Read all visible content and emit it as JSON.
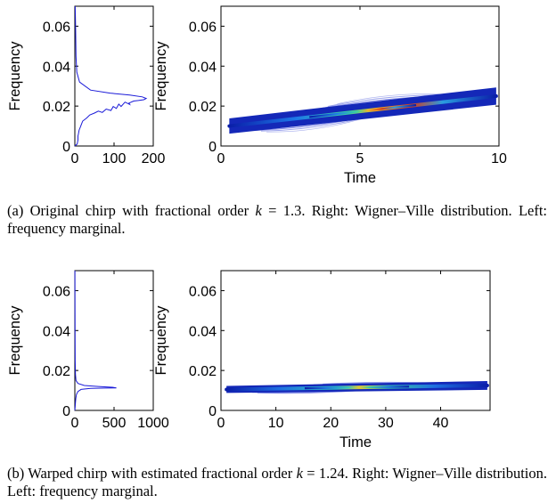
{
  "figure": {
    "captions": {
      "a": {
        "tag": "(a)",
        "text1": "Original chirp with fractional order ",
        "k": "k",
        "eq": " = ",
        "value": "1.3",
        "text2": ". Right: Wigner–Ville distribution. Left: frequency marginal."
      },
      "b": {
        "tag": "(b)",
        "text1": "Warped chirp with estimated fractional order ",
        "k": "k",
        "eq": " = ",
        "value": "1.24",
        "text2": ". Right: Wigner–Ville distribution. Left: frequency marginal."
      }
    }
  },
  "chart_data": [
    {
      "id": "a-marginal",
      "type": "line",
      "orientation": "vertical",
      "xlabel": "",
      "ylabel": "Frequency",
      "xlim": [
        0,
        200
      ],
      "ylim": [
        0,
        0.07
      ],
      "xticks": [
        "0",
        "100",
        "200"
      ],
      "yticks": [
        "0",
        "0.02",
        "0.04",
        "0.06"
      ],
      "line_color": "#1a1ad8",
      "series": [
        {
          "x": [
            0,
            6,
            8,
            8,
            9,
            10,
            11,
            14,
            17,
            20,
            30,
            38,
            50,
            60,
            70,
            80,
            92,
            98,
            106,
            112,
            118,
            128,
            140,
            138,
            150,
            162,
            176,
            180,
            182,
            172,
            140,
            90,
            40,
            12,
            5,
            3,
            2,
            1
          ],
          "y": [
            0.0,
            0.001,
            0.003,
            0.005,
            0.006,
            0.007,
            0.008,
            0.0095,
            0.011,
            0.0125,
            0.014,
            0.0155,
            0.0165,
            0.0175,
            0.0168,
            0.0185,
            0.0178,
            0.0198,
            0.0188,
            0.021,
            0.0198,
            0.022,
            0.0208,
            0.0215,
            0.0225,
            0.0228,
            0.0232,
            0.0236,
            0.0238,
            0.0246,
            0.0255,
            0.0265,
            0.028,
            0.032,
            0.037,
            0.045,
            0.058,
            0.07
          ]
        }
      ]
    },
    {
      "id": "a-wvd",
      "type": "heatmap",
      "xlabel": "Time",
      "ylabel": "Frequency",
      "xlim": [
        0,
        10
      ],
      "ylim": [
        0,
        0.07
      ],
      "xticks": [
        "0",
        "5",
        "10"
      ],
      "yticks": [
        "0",
        "0.02",
        "0.04",
        "0.06"
      ],
      "ridge": {
        "t_start": 0.3,
        "f_start": 0.01,
        "t_end": 9.9,
        "f_end": 0.025
      }
    },
    {
      "id": "b-marginal",
      "type": "line",
      "orientation": "vertical",
      "xlabel": "",
      "ylabel": "Frequency",
      "xlim": [
        0,
        1000
      ],
      "ylim": [
        0,
        0.07
      ],
      "xticks": [
        "0",
        "500",
        "1000"
      ],
      "yticks": [
        "0",
        "0.02",
        "0.04",
        "0.06"
      ],
      "line_color": "#1a1ad8",
      "series": [
        {
          "x": [
            0,
            4,
            8,
            12,
            20,
            40,
            80,
            200,
            400,
            530,
            480,
            300,
            120,
            40,
            15,
            8,
            5,
            3,
            2,
            1
          ],
          "y": [
            0.0,
            0.002,
            0.004,
            0.006,
            0.008,
            0.0095,
            0.0105,
            0.011,
            0.0112,
            0.0113,
            0.0116,
            0.012,
            0.0125,
            0.0135,
            0.015,
            0.018,
            0.025,
            0.035,
            0.05,
            0.07
          ]
        }
      ]
    },
    {
      "id": "b-wvd",
      "type": "heatmap",
      "xlabel": "Time",
      "ylabel": "Frequency",
      "xlim": [
        0,
        49
      ],
      "ylim": [
        0,
        0.07
      ],
      "xticks": [
        "0",
        "10",
        "20",
        "30",
        "40"
      ],
      "yticks": [
        "0",
        "0.02",
        "0.04",
        "0.06"
      ],
      "ridge": {
        "t_start": 1,
        "f_start": 0.0105,
        "t_end": 48.5,
        "f_end": 0.0125
      }
    }
  ]
}
